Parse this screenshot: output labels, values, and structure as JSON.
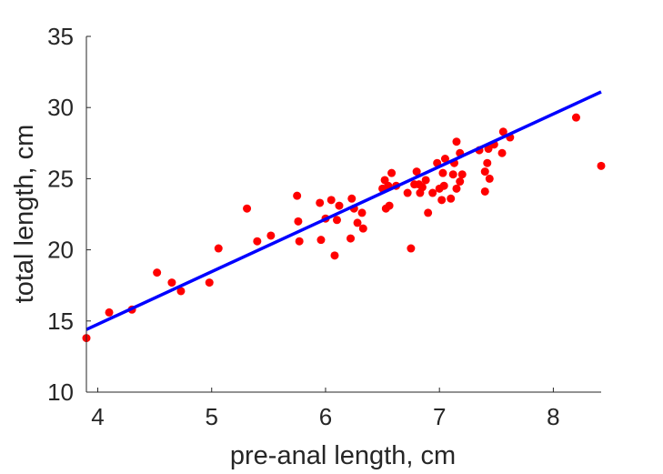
{
  "chart_data": {
    "type": "scatter",
    "title": "",
    "xlabel": "pre-anal length, cm",
    "ylabel": "total length, cm",
    "xlim": [
      3.9,
      8.42
    ],
    "ylim": [
      10,
      35
    ],
    "xticks": [
      "4",
      "5",
      "6",
      "7",
      "8"
    ],
    "yticks": [
      "10",
      "15",
      "20",
      "25",
      "30",
      "35"
    ],
    "grid": false,
    "legend": "none",
    "series": [
      {
        "type": "scatter",
        "color": "#ff0000",
        "points": [
          [
            3.9,
            13.8
          ],
          [
            4.1,
            15.6
          ],
          [
            4.3,
            15.8
          ],
          [
            4.52,
            18.4
          ],
          [
            4.65,
            17.7
          ],
          [
            4.73,
            17.1
          ],
          [
            4.98,
            17.7
          ],
          [
            5.06,
            20.1
          ],
          [
            5.31,
            22.9
          ],
          [
            5.4,
            20.6
          ],
          [
            5.52,
            21.0
          ],
          [
            5.75,
            23.8
          ],
          [
            5.76,
            22.0
          ],
          [
            5.77,
            20.6
          ],
          [
            5.95,
            23.3
          ],
          [
            5.96,
            20.7
          ],
          [
            6.0,
            22.2
          ],
          [
            6.05,
            23.5
          ],
          [
            6.08,
            19.6
          ],
          [
            6.1,
            22.1
          ],
          [
            6.12,
            23.1
          ],
          [
            6.22,
            20.8
          ],
          [
            6.23,
            23.6
          ],
          [
            6.25,
            22.9
          ],
          [
            6.28,
            21.9
          ],
          [
            6.32,
            22.6
          ],
          [
            6.33,
            21.5
          ],
          [
            6.5,
            24.3
          ],
          [
            6.52,
            24.9
          ],
          [
            6.53,
            22.9
          ],
          [
            6.55,
            24.5
          ],
          [
            6.56,
            23.1
          ],
          [
            6.58,
            25.4
          ],
          [
            6.62,
            24.5
          ],
          [
            6.72,
            24.0
          ],
          [
            6.75,
            20.1
          ],
          [
            6.78,
            24.6
          ],
          [
            6.8,
            25.5
          ],
          [
            6.82,
            24.6
          ],
          [
            6.83,
            24.0
          ],
          [
            6.85,
            24.4
          ],
          [
            6.88,
            24.9
          ],
          [
            6.9,
            22.6
          ],
          [
            6.94,
            24.0
          ],
          [
            6.98,
            26.1
          ],
          [
            7.0,
            24.3
          ],
          [
            7.02,
            23.5
          ],
          [
            7.03,
            25.4
          ],
          [
            7.04,
            24.5
          ],
          [
            7.05,
            26.4
          ],
          [
            7.1,
            23.6
          ],
          [
            7.12,
            25.3
          ],
          [
            7.13,
            26.1
          ],
          [
            7.15,
            27.6
          ],
          [
            7.18,
            26.8
          ],
          [
            7.18,
            24.8
          ],
          [
            7.2,
            25.3
          ],
          [
            7.15,
            24.3
          ],
          [
            7.35,
            27.0
          ],
          [
            7.4,
            24.1
          ],
          [
            7.42,
            26.1
          ],
          [
            7.43,
            27.1
          ],
          [
            7.44,
            25.0
          ],
          [
            7.4,
            25.5
          ],
          [
            7.48,
            27.4
          ],
          [
            7.55,
            26.8
          ],
          [
            7.56,
            28.3
          ],
          [
            7.62,
            27.9
          ],
          [
            8.2,
            29.3
          ],
          [
            8.42,
            25.9
          ]
        ]
      },
      {
        "type": "line",
        "color": "#0000ff",
        "points": [
          [
            3.9,
            14.4
          ],
          [
            8.42,
            31.1
          ]
        ]
      }
    ]
  }
}
